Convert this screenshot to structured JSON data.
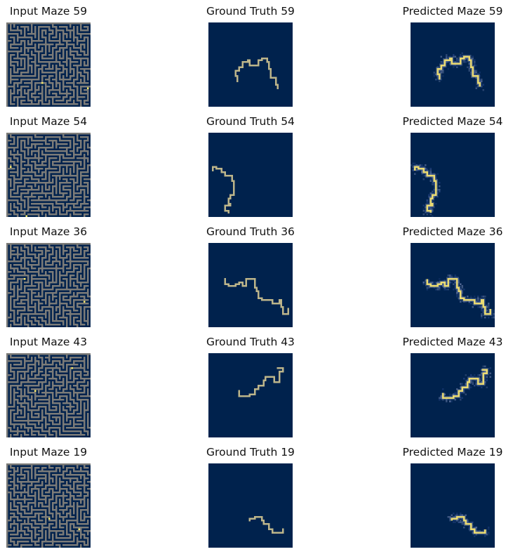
{
  "colors": {
    "background": "#00224d",
    "maze_wall": "#7c7b78",
    "path": "#bdb58a",
    "path_bright": "#fde970",
    "marker": "#f6e96b",
    "heat_low": "#1d3d7a",
    "heat_mid": "#5a6f9a"
  },
  "rows": [
    {
      "input_title": "Input Maze 59",
      "truth_title": "Ground Truth 59",
      "pred_title": "Predicted Maze 59",
      "markers": [
        [
          20,
          34
        ],
        [
          46,
          37
        ]
      ],
      "path": [
        [
          16,
          33
        ],
        [
          16,
          30
        ],
        [
          15,
          30
        ],
        [
          15,
          27
        ],
        [
          17,
          27
        ],
        [
          17,
          25
        ],
        [
          19,
          25
        ],
        [
          19,
          22
        ],
        [
          22,
          22
        ],
        [
          22,
          21
        ],
        [
          23,
          21
        ],
        [
          23,
          24
        ],
        [
          28,
          24
        ],
        [
          28,
          21
        ],
        [
          30,
          21
        ],
        [
          30,
          20
        ],
        [
          33,
          20
        ],
        [
          33,
          22
        ],
        [
          34,
          22
        ],
        [
          34,
          26
        ],
        [
          35,
          26
        ],
        [
          35,
          31
        ],
        [
          38,
          31
        ],
        [
          38,
          35
        ],
        [
          39,
          35
        ],
        [
          39,
          37
        ]
      ],
      "pred_offset": [
        0,
        -1
      ]
    },
    {
      "input_title": "Input Maze 54",
      "truth_title": "Ground Truth 54",
      "pred_title": "Predicted Maze 54",
      "markers": [
        [
          2,
          19
        ],
        [
          11,
          47
        ]
      ],
      "path": [
        [
          2,
          21
        ],
        [
          2,
          19
        ],
        [
          4,
          19
        ],
        [
          4,
          20
        ],
        [
          7,
          20
        ],
        [
          7,
          22
        ],
        [
          9,
          22
        ],
        [
          9,
          24
        ],
        [
          13,
          24
        ],
        [
          13,
          27
        ],
        [
          14,
          27
        ],
        [
          14,
          35
        ],
        [
          12,
          35
        ],
        [
          12,
          37
        ],
        [
          11,
          37
        ],
        [
          11,
          40
        ],
        [
          12,
          40
        ],
        [
          12,
          41
        ],
        [
          9,
          41
        ],
        [
          9,
          44
        ],
        [
          11,
          44
        ],
        [
          11,
          45
        ]
      ],
      "pred_offset": [
        0,
        0
      ]
    },
    {
      "input_title": "Input Maze 36",
      "truth_title": "Ground Truth 36",
      "pred_title": "Predicted Maze 36",
      "markers": [
        [
          10,
          20
        ],
        [
          44,
          33
        ]
      ],
      "path": [
        [
          9,
          20
        ],
        [
          9,
          23
        ],
        [
          11,
          23
        ],
        [
          11,
          24
        ],
        [
          15,
          24
        ],
        [
          15,
          23
        ],
        [
          17,
          23
        ],
        [
          17,
          22
        ],
        [
          19,
          22
        ],
        [
          19,
          24
        ],
        [
          21,
          24
        ],
        [
          21,
          20
        ],
        [
          26,
          20
        ],
        [
          26,
          25
        ],
        [
          27,
          25
        ],
        [
          27,
          27
        ],
        [
          28,
          27
        ],
        [
          28,
          31
        ],
        [
          30,
          31
        ],
        [
          30,
          32
        ],
        [
          36,
          32
        ],
        [
          36,
          34
        ],
        [
          40,
          34
        ],
        [
          40,
          32
        ],
        [
          41,
          32
        ],
        [
          41,
          36
        ],
        [
          42,
          36
        ],
        [
          42,
          40
        ],
        [
          45,
          40
        ],
        [
          45,
          37
        ]
      ],
      "pred_offset": [
        0,
        0
      ]
    },
    {
      "input_title": "Input Maze 43",
      "truth_title": "Ground Truth 43",
      "pred_title": "Predicted Maze 43",
      "markers": [
        [
          37,
          8
        ],
        [
          16,
          21
        ]
      ],
      "path": [
        [
          17,
          21
        ],
        [
          17,
          24
        ],
        [
          23,
          24
        ],
        [
          23,
          23
        ],
        [
          26,
          23
        ],
        [
          26,
          20
        ],
        [
          28,
          20
        ],
        [
          28,
          18
        ],
        [
          31,
          18
        ],
        [
          31,
          15
        ],
        [
          32,
          15
        ],
        [
          32,
          13
        ],
        [
          37,
          13
        ],
        [
          37,
          16
        ],
        [
          40,
          16
        ],
        [
          40,
          10
        ],
        [
          42,
          10
        ],
        [
          42,
          8
        ],
        [
          39,
          8
        ]
      ],
      "pred_offset": [
        1,
        1
      ]
    },
    {
      "input_title": "Input Maze 19",
      "truth_title": "Ground Truth 19",
      "pred_title": "Predicted Maze 19",
      "markers": [
        [
          24,
          31
        ],
        [
          41,
          37
        ]
      ],
      "path": [
        [
          23,
          32
        ],
        [
          23,
          31
        ],
        [
          26,
          31
        ],
        [
          26,
          30
        ],
        [
          30,
          30
        ],
        [
          30,
          32
        ],
        [
          31,
          32
        ],
        [
          31,
          34
        ],
        [
          34,
          34
        ],
        [
          34,
          37
        ],
        [
          36,
          37
        ],
        [
          36,
          39
        ],
        [
          42,
          39
        ],
        [
          42,
          37
        ]
      ],
      "pred_offset": [
        0,
        0
      ]
    }
  ]
}
